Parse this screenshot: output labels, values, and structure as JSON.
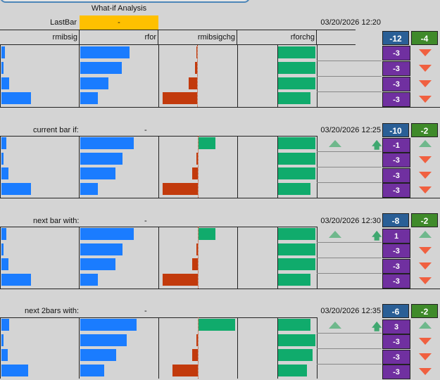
{
  "header": {
    "title": "What-if Analysis",
    "lastbar_label": "LastBar",
    "lastbar_value": "-",
    "date": "03/20/2026 12:20",
    "columns": [
      "rmibsig",
      "rfor",
      "rmibsigchg",
      "rforchg"
    ],
    "sum_blue": "-12",
    "sum_green": "-4",
    "rows": [
      "-3",
      "-3",
      "-3",
      "-3"
    ]
  },
  "block1": {
    "label": "current bar if:",
    "value": "-",
    "date": "03/20/2026 12:25",
    "sum_blue": "-10",
    "sum_green": "-2",
    "rows": [
      "-1",
      "-3",
      "-3",
      "-3"
    ]
  },
  "block2": {
    "label": "next bar with:",
    "value": "-",
    "date": "03/20/2026 12:30",
    "sum_blue": "-8",
    "sum_green": "-2",
    "rows": [
      "1",
      "-3",
      "-3",
      "-3"
    ]
  },
  "block3": {
    "label": "next 2bars with:",
    "value": "-",
    "date": "03/20/2026 12:35",
    "sum_blue": "-6",
    "sum_green": "-2",
    "rows": [
      "3",
      "-3",
      "-3",
      "-3"
    ]
  },
  "colors": {
    "blue": "#1a7cff",
    "red": "#c23a0c",
    "green": "#10ab6c",
    "purple": "#7030a0",
    "orange": "#ffc000",
    "sum_blue": "#2a5f96",
    "sum_green": "#3f8a2a"
  },
  "icons": [
    "triangle-down-icon",
    "triangle-up-icon",
    "arrow-up-icon"
  ]
}
